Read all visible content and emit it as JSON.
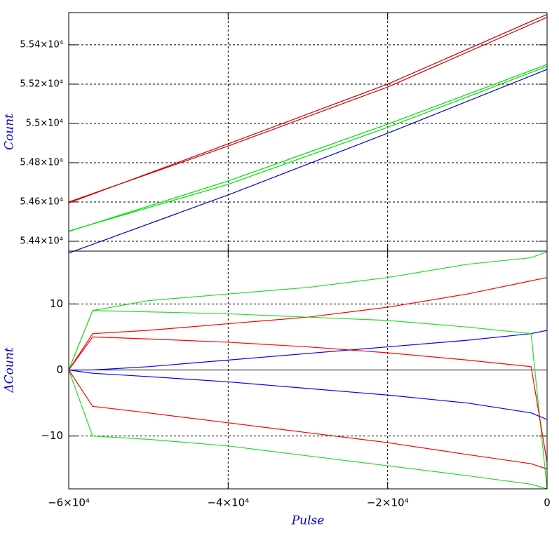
{
  "chart_data": [
    {
      "type": "line",
      "ylabel": "Count",
      "x": [
        -60000,
        -40000,
        -20000,
        0
      ],
      "xlim": [
        -60000,
        0
      ],
      "xticks": [
        -60000,
        -40000,
        -20000,
        0
      ],
      "ylim": [
        54350,
        55564
      ],
      "yticks": [
        {
          "value": 54400,
          "label": "5.44×10⁴"
        },
        {
          "value": 54600,
          "label": "5.46×10⁴"
        },
        {
          "value": 54800,
          "label": "5.48×10⁴"
        },
        {
          "value": 55000,
          "label": "5.5×10⁴"
        },
        {
          "value": 55200,
          "label": "5.52×10⁴"
        },
        {
          "value": 55400,
          "label": "5.54×10⁴"
        }
      ],
      "grid": true,
      "series": [
        {
          "color": "#cc0000",
          "values": [
            54595,
            54896,
            55200,
            55555
          ]
        },
        {
          "color": "#cc0000",
          "values": [
            54600,
            54885,
            55185,
            55540
          ]
        },
        {
          "color": "#00dd00",
          "values": [
            54450,
            54707,
            54996,
            55300
          ]
        },
        {
          "color": "#00dd00",
          "values": [
            54452,
            54690,
            54980,
            55290
          ]
        },
        {
          "color": "#0000cc",
          "values": [
            54340,
            54636,
            54950,
            55275
          ]
        }
      ]
    },
    {
      "type": "line",
      "xlabel": "Pulse",
      "ylabel": "ΔCount",
      "x": [
        -60000,
        -57000,
        -50000,
        -40000,
        -30000,
        -20000,
        -10000,
        -2000,
        0
      ],
      "xlim": [
        -60000,
        0
      ],
      "xticks": [
        {
          "value": -60000,
          "label": "−6×10⁴"
        },
        {
          "value": -40000,
          "label": "−4×10⁴"
        },
        {
          "value": -20000,
          "label": "−2×10⁴"
        },
        0
      ],
      "ylim": [
        -18,
        18
      ],
      "yticks": [
        {
          "value": -10,
          "label": "−10"
        },
        0,
        10
      ],
      "grid": true,
      "series": [
        {
          "color": "#22dd22",
          "values": [
            0,
            9,
            10.5,
            11.5,
            12.5,
            14,
            16,
            17,
            17.9
          ]
        },
        {
          "color": "#ff0000",
          "values": [
            0,
            5.5,
            6,
            7,
            8,
            9.5,
            11.5,
            13.5,
            14
          ]
        },
        {
          "color": "#0000ff",
          "values": [
            0,
            0,
            0.5,
            1.5,
            2.5,
            3.5,
            4.5,
            5.5,
            6
          ]
        },
        {
          "color": "#22dd22",
          "values": [
            0,
            9,
            8.8,
            8.5,
            8,
            7.5,
            6.5,
            5.5,
            -18
          ]
        },
        {
          "color": "#22dd22",
          "values": [
            0,
            -10,
            -10.5,
            -11.5,
            -13,
            -14.5,
            -16,
            -17.3,
            -18
          ]
        },
        {
          "color": "#ff0000",
          "values": [
            0,
            5,
            4.7,
            4.2,
            3.5,
            2.6,
            1.5,
            0.5,
            -14
          ]
        },
        {
          "color": "#ff0000",
          "values": [
            0,
            -5.5,
            -6.5,
            -8,
            -9.5,
            -11,
            -12.8,
            -14.2,
            -15
          ]
        },
        {
          "color": "#0000ff",
          "values": [
            0,
            -0.5,
            -1,
            -1.8,
            -2.8,
            -3.8,
            -5,
            -6.5,
            -7.5
          ]
        }
      ]
    }
  ]
}
